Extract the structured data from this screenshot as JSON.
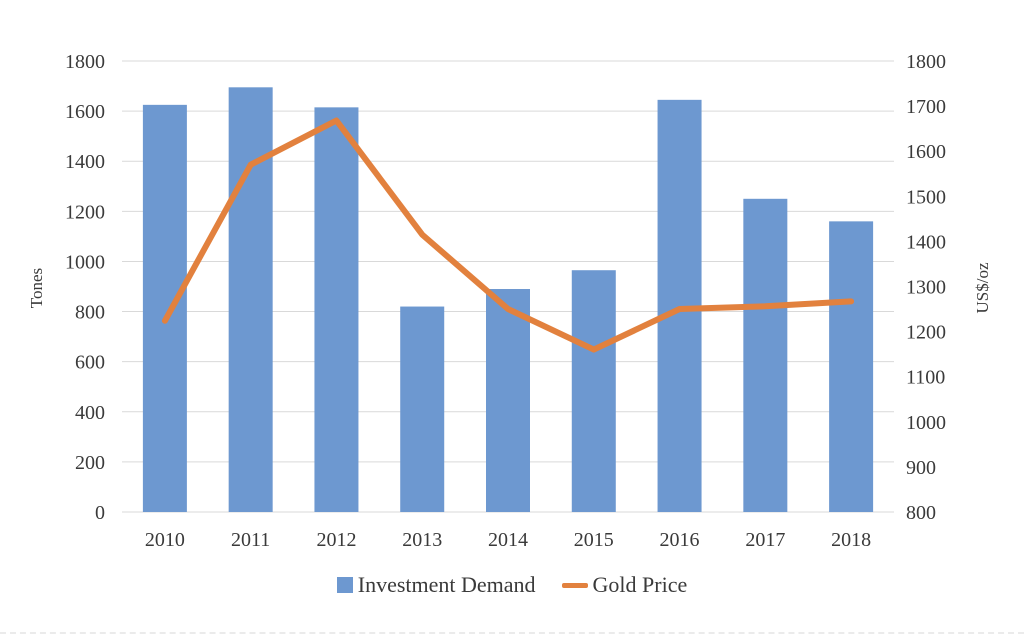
{
  "chart_data": {
    "type": "combo-bar-line",
    "categories": [
      "2010",
      "2011",
      "2012",
      "2013",
      "2014",
      "2015",
      "2016",
      "2017",
      "2018"
    ],
    "series": [
      {
        "name": "Investment Demand",
        "chart_type": "bar",
        "axis": "left",
        "color": "#6D98D0",
        "values": [
          1625,
          1695,
          1615,
          820,
          890,
          965,
          1645,
          1250,
          1160
        ]
      },
      {
        "name": "Gold Price",
        "chart_type": "line",
        "axis": "right",
        "color": "#E2813E",
        "values": [
          1224,
          1570,
          1668,
          1415,
          1250,
          1160,
          1250,
          1256,
          1267
        ]
      }
    ],
    "left_axis": {
      "title": "Tones",
      "min": 0,
      "max": 1800,
      "step": 200,
      "ticks": [
        "1800",
        "1600",
        "1400",
        "1200",
        "1000",
        "800",
        "600",
        "400",
        "200",
        "0"
      ]
    },
    "right_axis": {
      "title": "US$/oz",
      "min": 800,
      "max": 1800,
      "step": 100,
      "ticks": [
        "1800",
        "1700",
        "1600",
        "1500",
        "1400",
        "1300",
        "1200",
        "1100",
        "1000",
        "900",
        "800"
      ]
    },
    "grid": "horizontal",
    "legend_position": "bottom",
    "colors": {
      "gridline": "#D9D9D9",
      "tick_text": "#3A3A3A",
      "background": "#FFFFFF"
    }
  }
}
